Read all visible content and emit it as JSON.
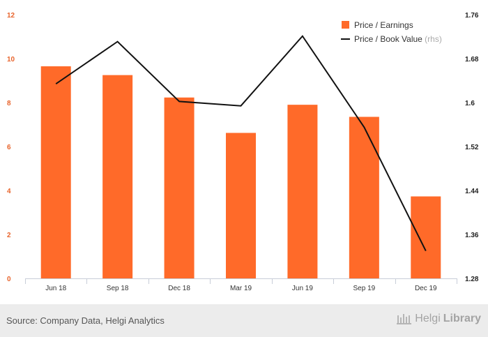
{
  "chart_data": {
    "type": "bar",
    "categories": [
      "Jun 18",
      "Sep 18",
      "Dec 18",
      "Mar 19",
      "Jun 19",
      "Sep 19",
      "Dec 19"
    ],
    "series": [
      {
        "name": "Price / Earnings",
        "type": "bar",
        "axis": "left",
        "color": "#ff6a29",
        "values": [
          9.65,
          9.25,
          8.23,
          6.62,
          7.9,
          7.35,
          3.73
        ]
      },
      {
        "name": "Price / Book Value",
        "type": "line",
        "axis": "right",
        "color": "#111111",
        "values": [
          1.634,
          1.711,
          1.602,
          1.594,
          1.721,
          1.555,
          1.33
        ]
      }
    ],
    "left_axis": {
      "min": 0,
      "max": 12,
      "ticks": [
        "0",
        "2",
        "4",
        "6",
        "8",
        "10",
        "12"
      ],
      "tick_color": "#e8642c"
    },
    "right_axis": {
      "min": 1.28,
      "max": 1.76,
      "ticks": [
        "1.28",
        "1.36",
        "1.44",
        "1.52",
        "1.6",
        "1.68",
        "1.76"
      ]
    },
    "legend": {
      "position": "top-right",
      "items": [
        {
          "label": "Price / Earnings",
          "suffix": ""
        },
        {
          "label": "Price / Book Value",
          "suffix": "(rhs)"
        }
      ]
    },
    "grid": false
  },
  "footer": {
    "source": "Source: Company Data, Helgi Analytics",
    "brand_light": "Helgi",
    "brand_bold": "Library"
  }
}
